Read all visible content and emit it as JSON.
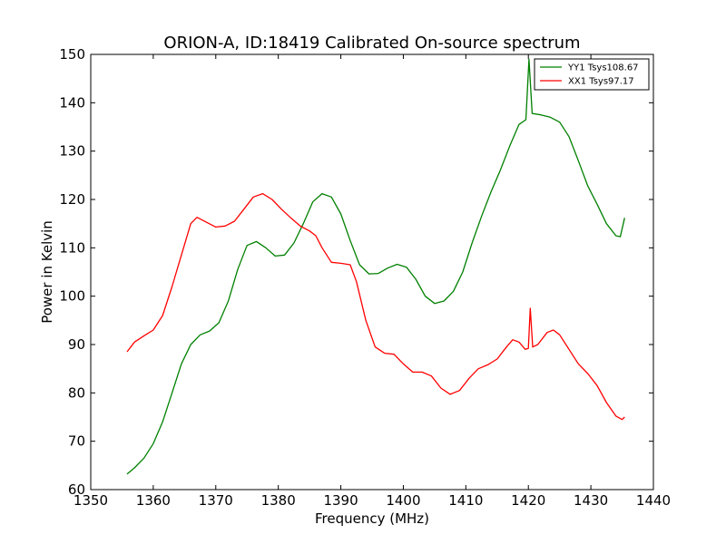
{
  "chart_data": {
    "type": "line",
    "title": "ORION-A, ID:18419 Calibrated On-source spectrum",
    "xlabel": "Frequency (MHz)",
    "ylabel": "Power in Kelvin",
    "xlim": [
      1350,
      1440
    ],
    "ylim": [
      60,
      150
    ],
    "xticks": [
      1350,
      1360,
      1370,
      1380,
      1390,
      1400,
      1410,
      1420,
      1430,
      1440
    ],
    "yticks": [
      60,
      70,
      80,
      90,
      100,
      110,
      120,
      130,
      140,
      150
    ],
    "grid": false,
    "legend_position": "top-right",
    "series": [
      {
        "name": "YY1 Tsys108.67",
        "color": "#008000",
        "points": [
          [
            1355.8,
            63.2
          ],
          [
            1357,
            64.5
          ],
          [
            1358.5,
            66.5
          ],
          [
            1360,
            69.5
          ],
          [
            1361.5,
            74
          ],
          [
            1363,
            80
          ],
          [
            1364.5,
            86
          ],
          [
            1366,
            90
          ],
          [
            1367.5,
            92
          ],
          [
            1369,
            92.8
          ],
          [
            1370.5,
            94.5
          ],
          [
            1372,
            99
          ],
          [
            1373.5,
            105.5
          ],
          [
            1375,
            110.5
          ],
          [
            1376.5,
            111.3
          ],
          [
            1378,
            110
          ],
          [
            1379.5,
            108.3
          ],
          [
            1381,
            108.5
          ],
          [
            1382.5,
            111
          ],
          [
            1384,
            115
          ],
          [
            1385.5,
            119.5
          ],
          [
            1387,
            121.2
          ],
          [
            1388.5,
            120.5
          ],
          [
            1390,
            117
          ],
          [
            1391.5,
            111.5
          ],
          [
            1393,
            106.5
          ],
          [
            1394.5,
            104.6
          ],
          [
            1396,
            104.7
          ],
          [
            1397.5,
            105.8
          ],
          [
            1399,
            106.6
          ],
          [
            1400.5,
            106
          ],
          [
            1402,
            103.5
          ],
          [
            1403.5,
            100
          ],
          [
            1405,
            98.5
          ],
          [
            1406.5,
            99
          ],
          [
            1408,
            101
          ],
          [
            1409.5,
            105
          ],
          [
            1411,
            111
          ],
          [
            1412.5,
            116.5
          ],
          [
            1414,
            121.5
          ],
          [
            1415.5,
            126
          ],
          [
            1417,
            131
          ],
          [
            1418.5,
            135.5
          ],
          [
            1419.6,
            136.5
          ],
          [
            1420.1,
            149
          ],
          [
            1420.6,
            137.8
          ],
          [
            1422,
            137.5
          ],
          [
            1423.5,
            137
          ],
          [
            1425,
            136
          ],
          [
            1426.5,
            133
          ],
          [
            1428,
            128
          ],
          [
            1429.5,
            122.8
          ],
          [
            1431,
            119
          ],
          [
            1432.5,
            115
          ],
          [
            1434,
            112.5
          ],
          [
            1434.7,
            112.3
          ],
          [
            1435.4,
            116.2
          ]
        ]
      },
      {
        "name": "XX1 Tsys97.17",
        "color": "#ff0000",
        "points": [
          [
            1355.8,
            88.5
          ],
          [
            1357,
            90.5
          ],
          [
            1358.5,
            91.8
          ],
          [
            1360,
            93
          ],
          [
            1361.5,
            96
          ],
          [
            1363,
            102
          ],
          [
            1364.5,
            108.5
          ],
          [
            1366,
            115
          ],
          [
            1367,
            116.3
          ],
          [
            1368.5,
            115.3
          ],
          [
            1370,
            114.3
          ],
          [
            1371.5,
            114.5
          ],
          [
            1373,
            115.5
          ],
          [
            1374.5,
            118
          ],
          [
            1376,
            120.5
          ],
          [
            1377.5,
            121.2
          ],
          [
            1379,
            120
          ],
          [
            1380.5,
            118
          ],
          [
            1382,
            116.2
          ],
          [
            1383.5,
            114.5
          ],
          [
            1385,
            113.5
          ],
          [
            1386,
            112.5
          ],
          [
            1387,
            110
          ],
          [
            1388.5,
            107
          ],
          [
            1390,
            106.8
          ],
          [
            1391.5,
            106.5
          ],
          [
            1392.5,
            103
          ],
          [
            1394,
            95
          ],
          [
            1395.5,
            89.5
          ],
          [
            1397,
            88.2
          ],
          [
            1398.5,
            88
          ],
          [
            1400,
            86
          ],
          [
            1401.5,
            84.3
          ],
          [
            1403,
            84.3
          ],
          [
            1404.5,
            83.5
          ],
          [
            1406,
            81
          ],
          [
            1407.5,
            79.7
          ],
          [
            1409,
            80.5
          ],
          [
            1410.5,
            83
          ],
          [
            1412,
            85
          ],
          [
            1413.5,
            85.8
          ],
          [
            1415,
            87
          ],
          [
            1416.5,
            89.5
          ],
          [
            1417.5,
            91
          ],
          [
            1418.5,
            90.5
          ],
          [
            1419.5,
            89
          ],
          [
            1420,
            89.2
          ],
          [
            1420.3,
            97.5
          ],
          [
            1420.7,
            89.5
          ],
          [
            1421.5,
            90
          ],
          [
            1423,
            92.5
          ],
          [
            1424,
            93
          ],
          [
            1425,
            92
          ],
          [
            1426.5,
            89
          ],
          [
            1428,
            86
          ],
          [
            1429.5,
            84
          ],
          [
            1431,
            81.5
          ],
          [
            1432.5,
            78
          ],
          [
            1434,
            75.2
          ],
          [
            1435,
            74.5
          ],
          [
            1435.4,
            75
          ]
        ]
      }
    ]
  }
}
